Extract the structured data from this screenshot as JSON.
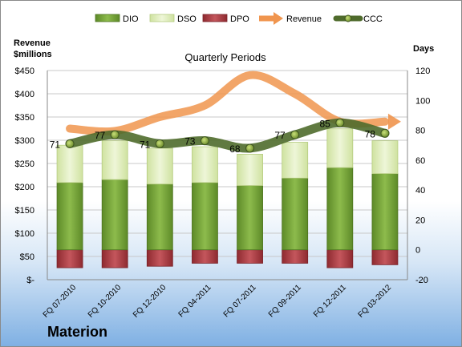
{
  "company": "Materion",
  "chart_data": {
    "type": "bar",
    "title": "Quarterly Periods",
    "left_axis": {
      "title_line1": "Revenue",
      "title_line2": "$millions",
      "min": 0,
      "max": 450,
      "step": 50,
      "tick_labels": [
        "$-",
        "$50",
        "$100",
        "$150",
        "$200",
        "$250",
        "$300",
        "$350",
        "$400",
        "$450"
      ]
    },
    "right_axis": {
      "title": "Days",
      "min": -20,
      "max": 120,
      "step": 20,
      "tick_labels": [
        "-20",
        "0",
        "20",
        "40",
        "60",
        "80",
        "100",
        "120"
      ]
    },
    "categories": [
      "FQ 07-2010",
      "FQ 10-2010",
      "FQ 12-2010",
      "FQ 04-2011",
      "FQ 07-2011",
      "FQ 09-2011",
      "FQ 12-2011",
      "FQ 03-2012"
    ],
    "legend": [
      "DIO",
      "DSO",
      "DPO",
      "Revenue",
      "CCC"
    ],
    "legend_position": "top",
    "grid": true,
    "series": [
      {
        "name": "DIO",
        "axis": "right",
        "kind": "stacked-bar",
        "values": [
          45,
          47,
          44,
          45,
          43,
          48,
          55,
          51
        ]
      },
      {
        "name": "DSO",
        "axis": "right",
        "kind": "stacked-bar",
        "values": [
          25,
          26,
          24,
          24,
          21,
          24,
          26,
          22
        ]
      },
      {
        "name": "DPO",
        "axis": "right",
        "kind": "negative-bar",
        "values": [
          -12,
          -12,
          -11,
          -9,
          -9,
          -9,
          -12,
          -10
        ]
      },
      {
        "name": "Revenue",
        "axis": "left",
        "kind": "line",
        "values": [
          325,
          320,
          350,
          375,
          440,
          400,
          340,
          340
        ]
      },
      {
        "name": "CCC",
        "axis": "right",
        "kind": "line",
        "values": [
          71,
          77,
          71,
          73,
          68,
          77,
          85,
          78
        ],
        "data_labels": [
          "71",
          "77",
          "71",
          "73",
          "68",
          "77",
          "85",
          "78"
        ]
      }
    ],
    "colors": {
      "DIO": "#77a33a",
      "DSO": "#dcebb4",
      "DPO": "#a8383f",
      "Revenue": "#f0954e",
      "CCC": "#4f6b2c"
    }
  }
}
